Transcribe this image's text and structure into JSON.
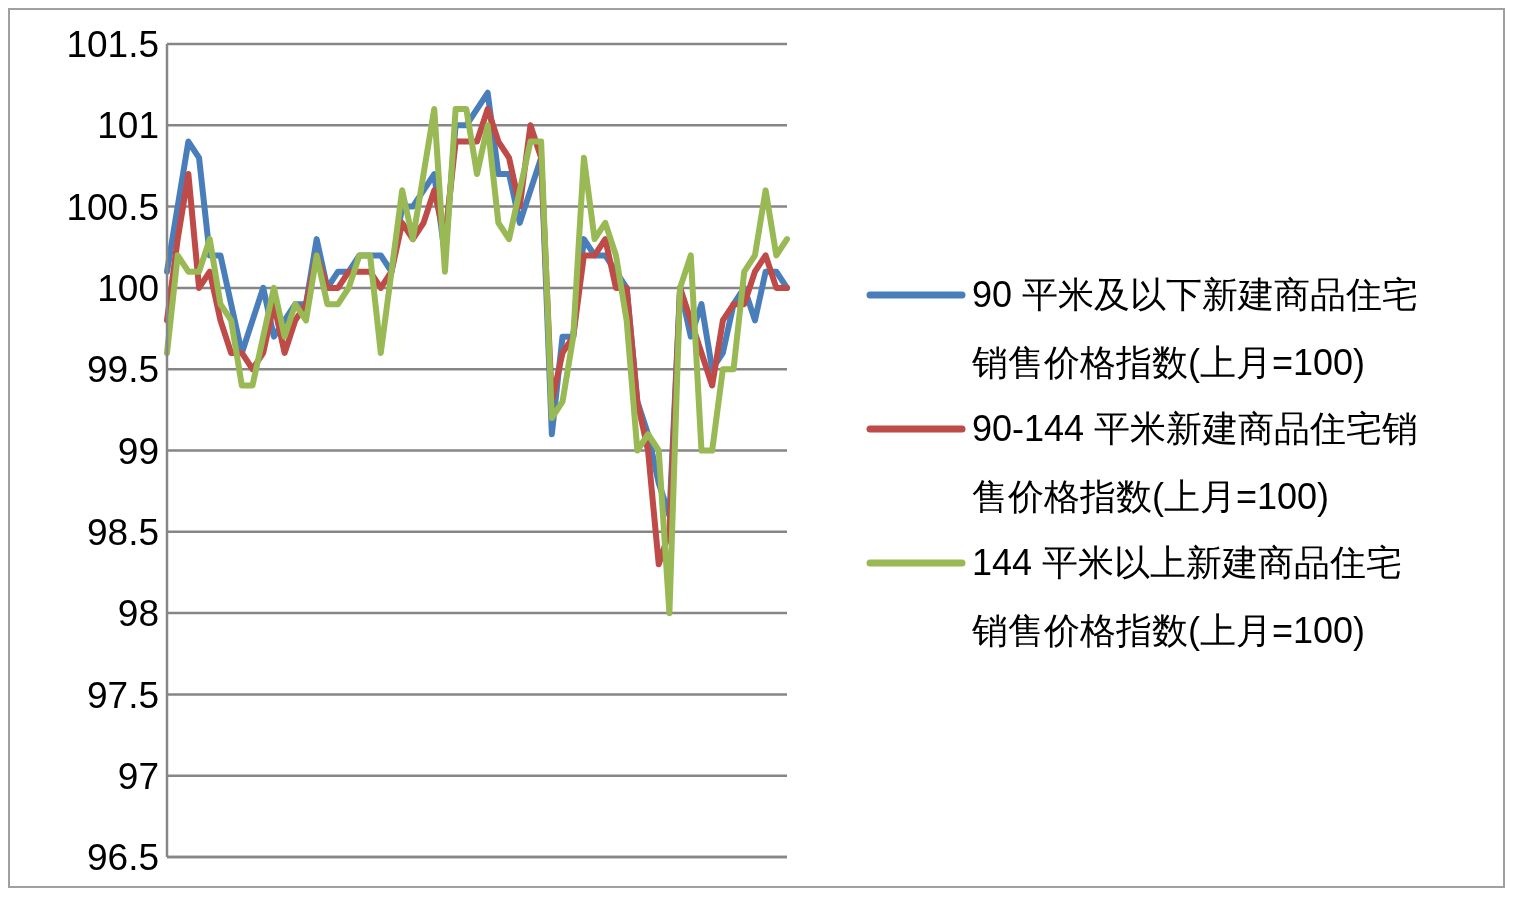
{
  "chart_data": {
    "type": "line",
    "categories": [
      null,
      null,
      null,
      null,
      null,
      null,
      null,
      null,
      null,
      null,
      null,
      null,
      null,
      null,
      null,
      null,
      null,
      null,
      null,
      null,
      null,
      null,
      null,
      null,
      null,
      null,
      null,
      null,
      null,
      null,
      null,
      null,
      null,
      null,
      null,
      null,
      null,
      null,
      null,
      null,
      null,
      null,
      null,
      null,
      null,
      null,
      null,
      null,
      null,
      null,
      null,
      null,
      null,
      null,
      null,
      null,
      null,
      null,
      null
    ],
    "series": [
      {
        "name": "90 平米及以下新建商品住宅销售价格指数(上月=100)",
        "color": "#4a7ebb",
        "values": [
          100.1,
          100.5,
          100.9,
          100.8,
          100.2,
          100.2,
          99.9,
          99.6,
          99.8,
          100.0,
          99.7,
          99.8,
          99.9,
          99.9,
          100.3,
          100.0,
          100.1,
          100.1,
          100.2,
          100.2,
          100.2,
          100.1,
          100.5,
          100.5,
          100.6,
          100.7,
          100.2,
          101.0,
          101.0,
          101.1,
          101.2,
          100.7,
          100.7,
          100.4,
          100.6,
          100.8,
          99.1,
          99.7,
          99.7,
          100.3,
          100.2,
          100.2,
          100.1,
          100.0,
          99.3,
          99.1,
          98.8,
          98.6,
          100.0,
          99.7,
          99.9,
          99.5,
          99.6,
          99.9,
          100.0,
          99.8,
          100.1,
          100.1,
          100.0
        ]
      },
      {
        "name": "90-144 平米新建商品住宅销售价格指数(上月=100)",
        "color": "#be4b48",
        "values": [
          99.8,
          100.3,
          100.7,
          100.0,
          100.1,
          99.8,
          99.6,
          99.6,
          99.5,
          99.6,
          99.9,
          99.6,
          99.8,
          99.9,
          100.2,
          100.0,
          100.0,
          100.1,
          100.1,
          100.1,
          100.0,
          100.1,
          100.4,
          100.3,
          100.4,
          100.6,
          100.3,
          100.9,
          100.9,
          100.9,
          101.1,
          100.9,
          100.8,
          100.5,
          101.0,
          100.8,
          99.3,
          99.6,
          99.7,
          100.2,
          100.2,
          100.3,
          100.0,
          100.0,
          99.3,
          99.0,
          98.3,
          98.5,
          100.0,
          99.8,
          99.6,
          99.4,
          99.8,
          99.9,
          99.9,
          100.1,
          100.2,
          100.0,
          100.0
        ]
      },
      {
        "name": "144 平米以上新建商品住宅销售价格指数(上月=100)",
        "color": "#98b954",
        "values": [
          99.6,
          100.2,
          100.1,
          100.1,
          100.3,
          99.9,
          99.8,
          99.4,
          99.4,
          99.7,
          100.0,
          99.7,
          99.9,
          99.8,
          100.2,
          99.9,
          99.9,
          100.0,
          100.2,
          100.2,
          99.6,
          100.1,
          100.6,
          100.3,
          100.7,
          101.1,
          100.1,
          101.1,
          101.1,
          100.7,
          101.0,
          100.4,
          100.3,
          100.6,
          100.9,
          100.9,
          99.2,
          99.3,
          99.7,
          100.8,
          100.3,
          100.4,
          100.2,
          99.8,
          99.0,
          99.1,
          99.0,
          98.0,
          100.0,
          100.2,
          99.0,
          99.0,
          99.5,
          99.5,
          100.1,
          100.2,
          100.6,
          100.2,
          100.3
        ]
      }
    ],
    "ylim": [
      96.5,
      101.5
    ],
    "yticks": [
      96.5,
      97,
      97.5,
      98,
      98.5,
      99,
      99.5,
      100,
      100.5,
      101,
      101.5
    ],
    "grid": "y",
    "legend": "right",
    "tick_labels": "y",
    "marker": "none",
    "line_style": "solid"
  }
}
